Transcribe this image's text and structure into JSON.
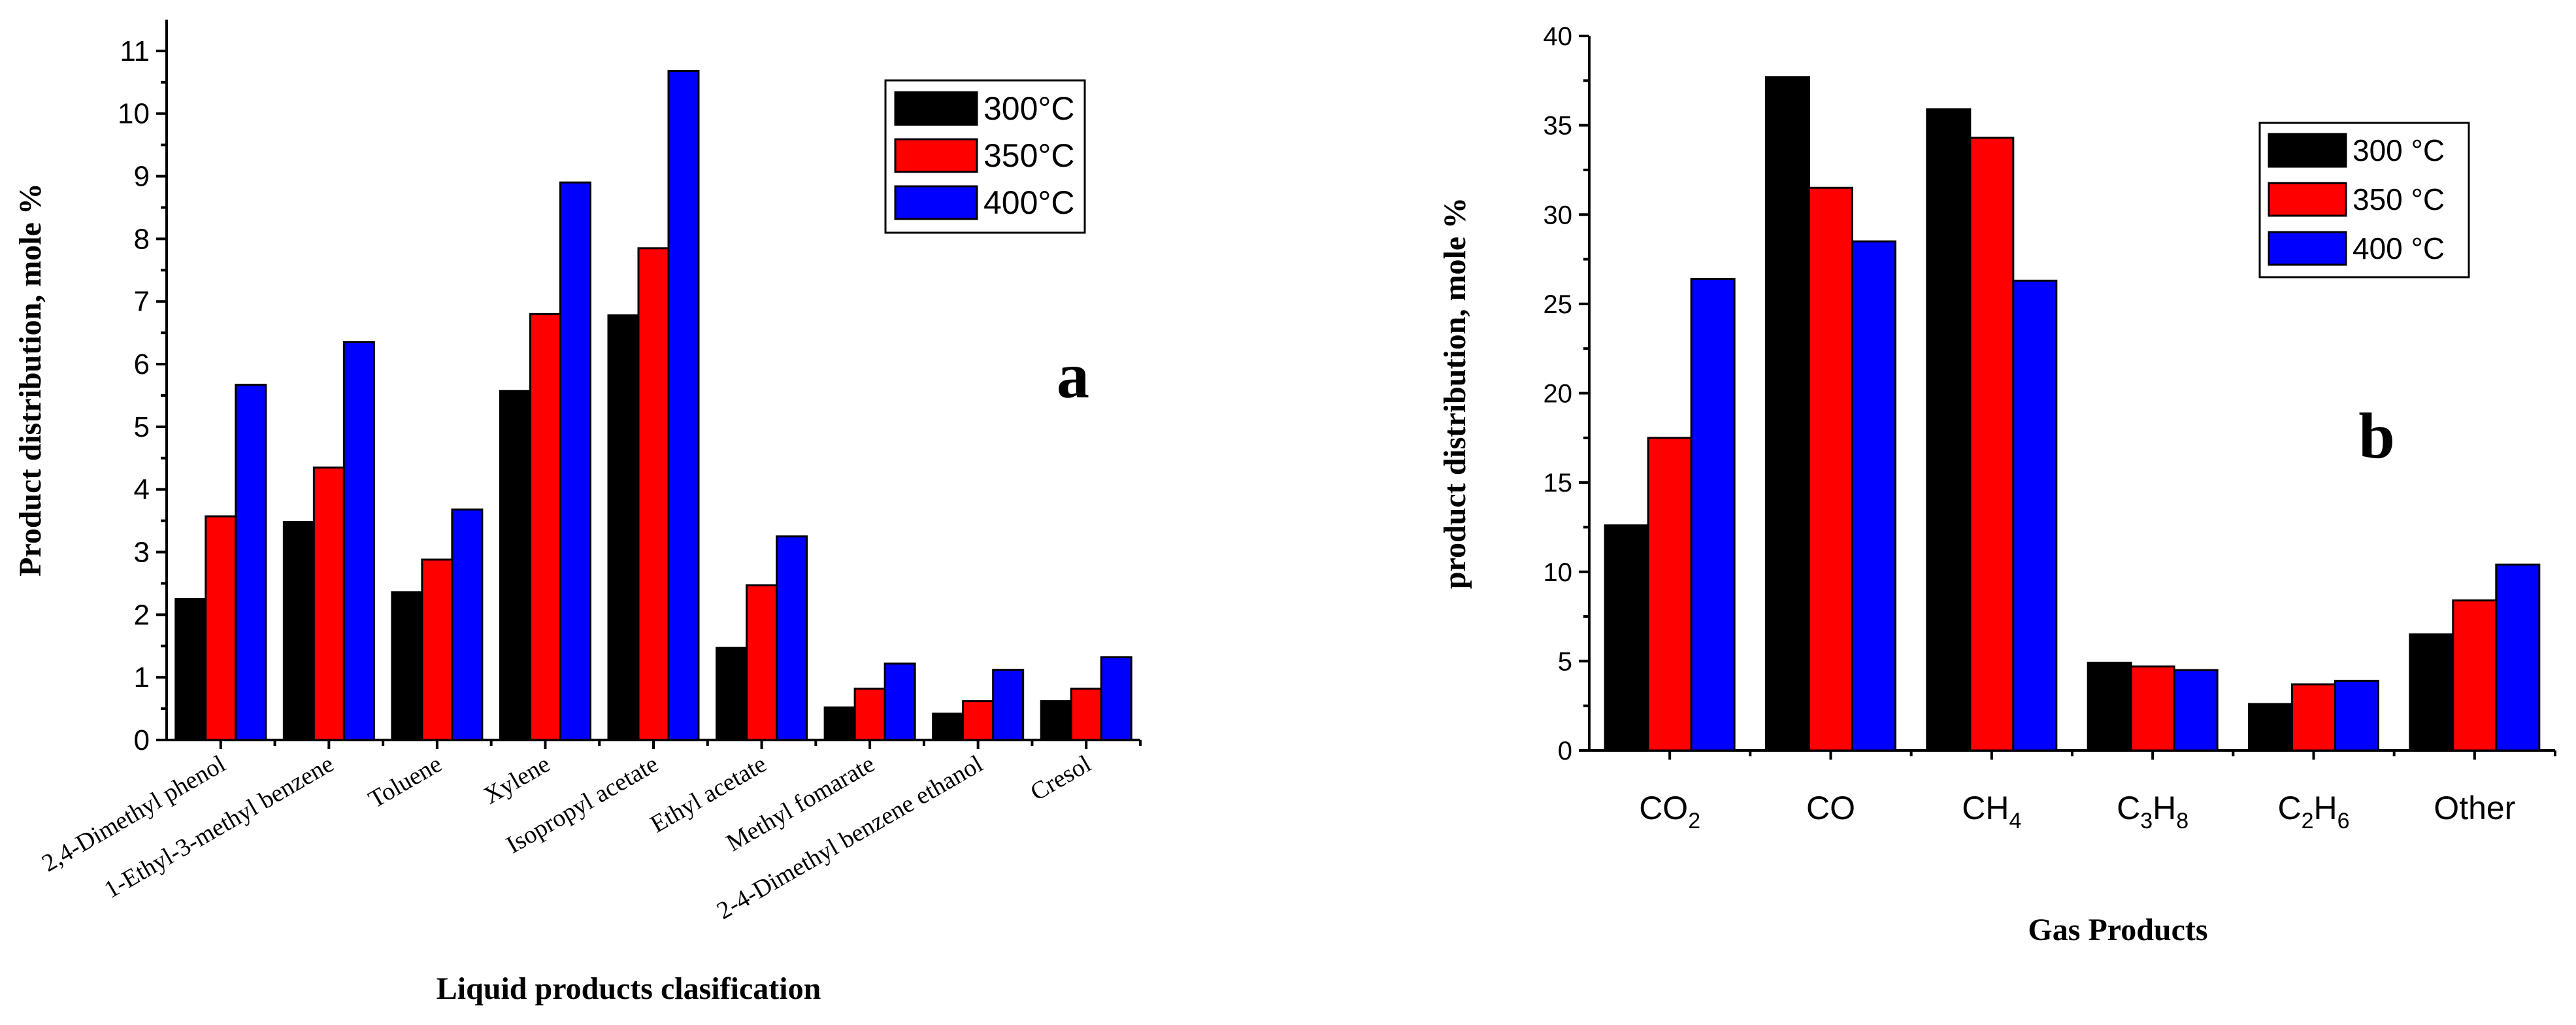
{
  "colors": {
    "300": "#000000",
    "350": "#ff0000",
    "400": "#0000ff"
  },
  "chart_data": [
    {
      "type": "bar",
      "panel_label": "a",
      "title": "",
      "xlabel": "Liquid products clasification",
      "ylabel": "Product distribution, mole %",
      "ylim": [
        0,
        11.5
      ],
      "yticks": [
        "0",
        "1",
        "2",
        "3",
        "4",
        "5",
        "6",
        "7",
        "8",
        "9",
        "10",
        "11"
      ],
      "categories": [
        "2,4-Dimethyl phenol",
        "1-Ethyl-3-methyl benzene",
        "Toluene",
        "Xylene",
        "Isopropyl acetate",
        "Ethyl acetate",
        "Methyl fomarate",
        "2-4-Dimethyl benzene ethanol",
        "Cresol"
      ],
      "series": [
        {
          "name": "300°C",
          "color": "#000000",
          "values": [
            2.25,
            3.48,
            2.36,
            5.57,
            6.78,
            1.47,
            0.52,
            0.42,
            0.62
          ]
        },
        {
          "name": "350°C",
          "color": "#ff0000",
          "values": [
            3.57,
            4.35,
            2.88,
            6.8,
            7.85,
            2.47,
            0.82,
            0.62,
            0.82
          ]
        },
        {
          "name": "400°C",
          "color": "#0000ff",
          "values": [
            5.67,
            6.35,
            3.68,
            8.9,
            10.68,
            3.25,
            1.22,
            1.12,
            1.32
          ]
        }
      ],
      "legend_position": "top-right"
    },
    {
      "type": "bar",
      "panel_label": "b",
      "title": "",
      "xlabel": "Gas Products",
      "ylabel": "product distribution, mole %",
      "ylim": [
        0,
        40
      ],
      "yticks": [
        "0",
        "5",
        "10",
        "15",
        "20",
        "25",
        "30",
        "35",
        "40"
      ],
      "categories": [
        {
          "main": "CO",
          "sub": "2",
          "after": ""
        },
        {
          "main": "CO",
          "sub": "",
          "after": ""
        },
        {
          "main": "CH",
          "sub": "4",
          "after": ""
        },
        {
          "main": "C",
          "sub": "3",
          "after": "H",
          "sub2": "8"
        },
        {
          "main": "C",
          "sub": "2",
          "after": "H",
          "sub2": "6"
        },
        {
          "main": "Other",
          "sub": "",
          "after": ""
        }
      ],
      "series": [
        {
          "name": "300 °C",
          "color": "#000000",
          "values": [
            12.6,
            37.7,
            35.9,
            4.9,
            2.6,
            6.5
          ]
        },
        {
          "name": "350 °C",
          "color": "#ff0000",
          "values": [
            17.5,
            31.5,
            34.3,
            4.7,
            3.7,
            8.4
          ]
        },
        {
          "name": "400 °C",
          "color": "#0000ff",
          "values": [
            26.4,
            28.5,
            26.3,
            4.5,
            3.9,
            10.4
          ]
        }
      ],
      "legend_position": "top-right"
    }
  ]
}
